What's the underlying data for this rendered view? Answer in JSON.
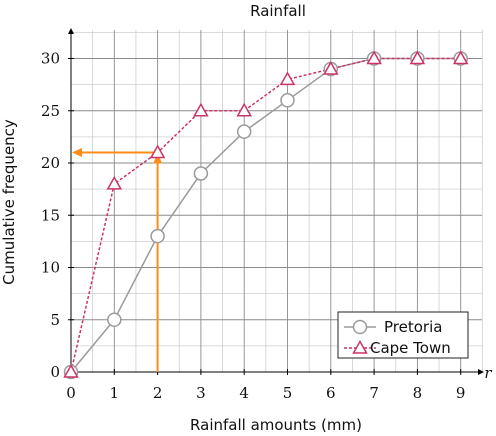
{
  "chart_data": {
    "type": "line",
    "title": "Rainfall",
    "xlabel": "Rainfall amounts (mm)",
    "ylabel": "Cumulative frequency",
    "x_axis_symbol": "r",
    "x": [
      0,
      1,
      2,
      3,
      4,
      5,
      6,
      7,
      8,
      9
    ],
    "xlim": [
      0,
      9.5
    ],
    "ylim": [
      0,
      32.5
    ],
    "x_ticks": [
      0,
      1,
      2,
      3,
      4,
      5,
      6,
      7,
      8,
      9
    ],
    "y_ticks": [
      0,
      5,
      10,
      15,
      20,
      25,
      30
    ],
    "grid": true,
    "legend": "bottom-right",
    "series": [
      {
        "name": "Pretoria",
        "marker": "circle",
        "line": "solid",
        "color": "#9a9a9a",
        "values": [
          0,
          5,
          13,
          19,
          23,
          26,
          29,
          30,
          30,
          30
        ]
      },
      {
        "name": "Cape Town",
        "marker": "triangle",
        "line": "dashed",
        "color": "#cc3366",
        "values": [
          0,
          18,
          21,
          25,
          25,
          28,
          29,
          30,
          30,
          30
        ]
      }
    ],
    "annotation": {
      "color": "#ff8c1a",
      "x": 2,
      "y": 21
    }
  }
}
